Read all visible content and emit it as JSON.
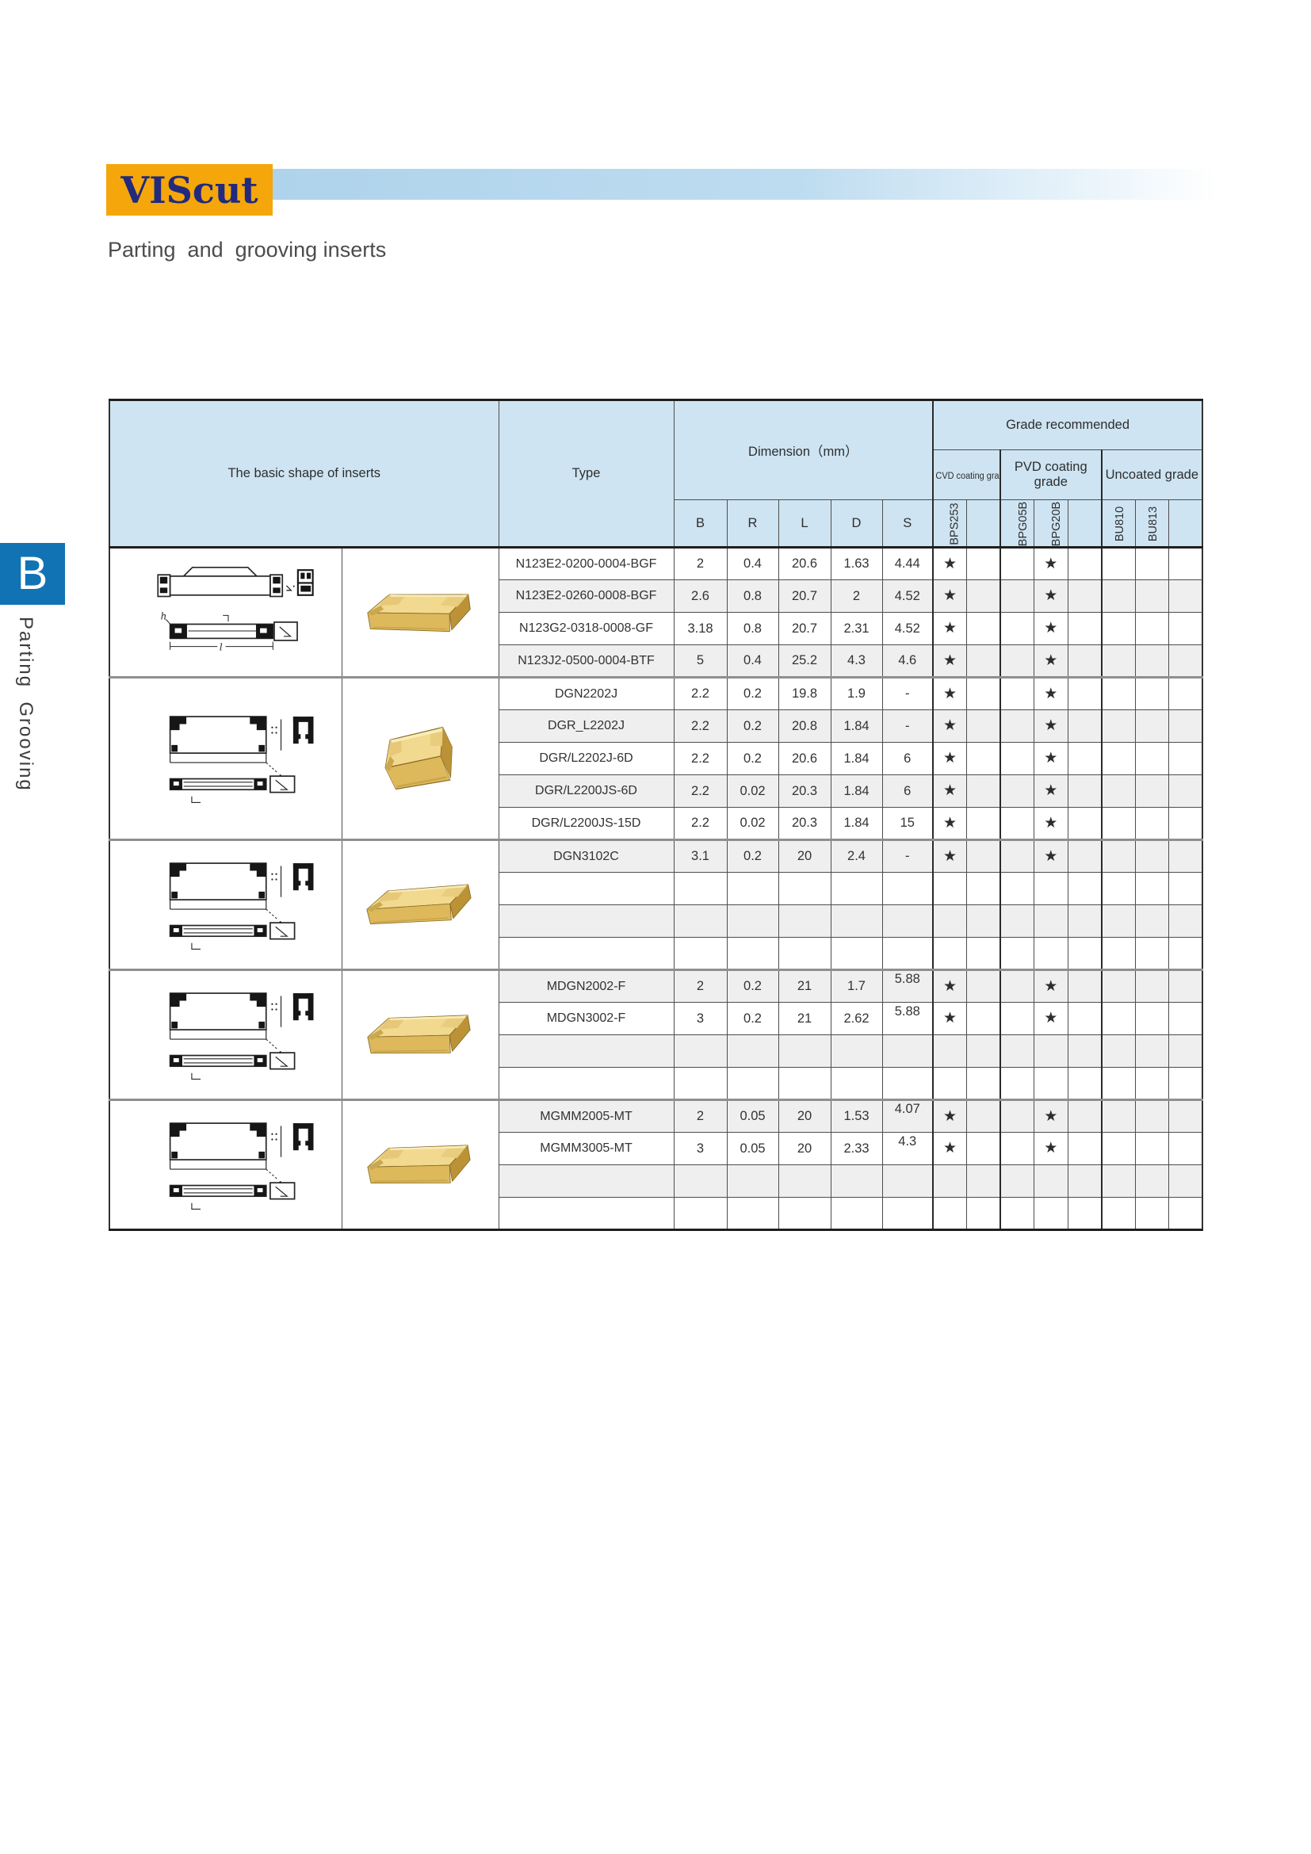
{
  "page": {
    "logo_text": "VIScut",
    "subtitle": "Parting  and  grooving inserts",
    "side_tab": {
      "letter": "B",
      "label": "Parting  Grooving"
    },
    "colors": {
      "logo_bg": "#f5a60a",
      "logo_text": "#212a7d",
      "accent_bar": "#aed3eb",
      "tab_blue": "#1173b4",
      "header_blue": "#cee4f2",
      "stripe_gray": "#efefef",
      "insert_gold": "#ddb95c"
    }
  },
  "table": {
    "headers": {
      "basic_shape": "The basic shape of inserts",
      "type": "Type",
      "dimension": "Dimension（mm）",
      "dim_cols": [
        "B",
        "R",
        "L",
        "D",
        "S"
      ],
      "grade_recommended": "Grade recommended",
      "grade_groups": [
        {
          "label": "CVD coating grade",
          "cols": [
            "BPS253",
            ""
          ]
        },
        {
          "label": "PVD coating grade",
          "cols": [
            "BPG05B",
            "BPG20B",
            ""
          ]
        },
        {
          "label": "Uncoated grade",
          "cols": [
            "BU810",
            "BU813",
            ""
          ]
        }
      ]
    },
    "star": "★",
    "blocks": [
      {
        "figure": "N123",
        "rows": [
          {
            "shaded": false,
            "type": "N123E2-0200-0004-BGF",
            "b": "2",
            "r": "0.4",
            "l": "20.6",
            "d": "1.63",
            "s": "4.44",
            "grades": [
              "★",
              "",
              "",
              "★",
              "",
              "",
              "",
              ""
            ]
          },
          {
            "shaded": true,
            "type": "N123E2-0260-0008-BGF",
            "b": "2.6",
            "r": "0.8",
            "l": "20.7",
            "d": "2",
            "s": "4.52",
            "grades": [
              "★",
              "",
              "",
              "★",
              "",
              "",
              "",
              ""
            ]
          },
          {
            "shaded": false,
            "type": "N123G2-0318-0008-GF",
            "b": "3.18",
            "r": "0.8",
            "l": "20.7",
            "d": "2.31",
            "s": "4.52",
            "grades": [
              "★",
              "",
              "",
              "★",
              "",
              "",
              "",
              ""
            ]
          },
          {
            "shaded": true,
            "type": "N123J2-0500-0004-BTF",
            "b": "5",
            "r": "0.4",
            "l": "25.2",
            "d": "4.3",
            "s": "4.6",
            "grades": [
              "★",
              "",
              "",
              "★",
              "",
              "",
              "",
              ""
            ]
          }
        ]
      },
      {
        "figure": "DGN",
        "rows": [
          {
            "shaded": false,
            "type": "DGN2202J",
            "b": "2.2",
            "r": "0.2",
            "l": "19.8",
            "d": "1.9",
            "s": "-",
            "grades": [
              "★",
              "",
              "",
              "★",
              "",
              "",
              "",
              ""
            ]
          },
          {
            "shaded": true,
            "type": "DGR_L2202J",
            "b": "2.2",
            "r": "0.2",
            "l": "20.8",
            "d": "1.84",
            "s": "-",
            "grades": [
              "★",
              "",
              "",
              "★",
              "",
              "",
              "",
              ""
            ]
          },
          {
            "shaded": false,
            "type": "DGR/L2202J-6D",
            "b": "2.2",
            "r": "0.2",
            "l": "20.6",
            "d": "1.84",
            "s": "6",
            "grades": [
              "★",
              "",
              "",
              "★",
              "",
              "",
              "",
              ""
            ]
          },
          {
            "shaded": true,
            "type": "DGR/L2200JS-6D",
            "b": "2.2",
            "r": "0.02",
            "l": "20.3",
            "d": "1.84",
            "s": "6",
            "grades": [
              "★",
              "",
              "",
              "★",
              "",
              "",
              "",
              ""
            ]
          },
          {
            "shaded": false,
            "type": "DGR/L2200JS-15D",
            "b": "2.2",
            "r": "0.02",
            "l": "20.3",
            "d": "1.84",
            "s": "15",
            "grades": [
              "★",
              "",
              "",
              "★",
              "",
              "",
              "",
              ""
            ]
          }
        ]
      },
      {
        "figure": "DGN",
        "rows": [
          {
            "shaded": true,
            "type": "DGN3102C",
            "b": "3.1",
            "r": "0.2",
            "l": "20",
            "d": "2.4",
            "s": "-",
            "grades": [
              "★",
              "",
              "",
              "★",
              "",
              "",
              "",
              ""
            ]
          },
          {
            "shaded": false,
            "type": "",
            "b": "",
            "r": "",
            "l": "",
            "d": "",
            "s": "",
            "grades": [
              "",
              "",
              "",
              "",
              "",
              "",
              "",
              ""
            ]
          },
          {
            "shaded": true,
            "type": "",
            "b": "",
            "r": "",
            "l": "",
            "d": "",
            "s": "",
            "grades": [
              "",
              "",
              "",
              "",
              "",
              "",
              "",
              ""
            ]
          },
          {
            "shaded": false,
            "type": "",
            "b": "",
            "r": "",
            "l": "",
            "d": "",
            "s": "",
            "grades": [
              "",
              "",
              "",
              "",
              "",
              "",
              "",
              ""
            ]
          }
        ]
      },
      {
        "figure": "DGN",
        "rows": [
          {
            "shaded": true,
            "type": "MDGN2002-F",
            "b": "2",
            "r": "0.2",
            "l": "21",
            "d": "1.7",
            "s": "5.88",
            "grades": [
              "★",
              "",
              "",
              "★",
              "",
              "",
              "",
              ""
            ]
          },
          {
            "shaded": false,
            "type": "MDGN3002-F",
            "b": "3",
            "r": "0.2",
            "l": "21",
            "d": "2.62",
            "s": "5.88",
            "grades": [
              "★",
              "",
              "",
              "★",
              "",
              "",
              "",
              ""
            ]
          },
          {
            "shaded": true,
            "type": "",
            "b": "",
            "r": "",
            "l": "",
            "d": "",
            "s": "",
            "grades": [
              "",
              "",
              "",
              "",
              "",
              "",
              "",
              ""
            ]
          },
          {
            "shaded": false,
            "type": "",
            "b": "",
            "r": "",
            "l": "",
            "d": "",
            "s": "",
            "grades": [
              "",
              "",
              "",
              "",
              "",
              "",
              "",
              ""
            ]
          }
        ]
      },
      {
        "figure": "DGN",
        "rows": [
          {
            "shaded": true,
            "type": "MGMM2005-MT",
            "b": "2",
            "r": "0.05",
            "l": "20",
            "d": "1.53",
            "s": "4.07",
            "grades": [
              "★",
              "",
              "",
              "★",
              "",
              "",
              "",
              ""
            ]
          },
          {
            "shaded": false,
            "type": "MGMM3005-MT",
            "b": "3",
            "r": "0.05",
            "l": "20",
            "d": "2.33",
            "s": "4.3",
            "grades": [
              "★",
              "",
              "",
              "★",
              "",
              "",
              "",
              ""
            ]
          },
          {
            "shaded": true,
            "type": "",
            "b": "",
            "r": "",
            "l": "",
            "d": "",
            "s": "",
            "grades": [
              "",
              "",
              "",
              "",
              "",
              "",
              "",
              ""
            ]
          },
          {
            "shaded": false,
            "type": "",
            "b": "",
            "r": "",
            "l": "",
            "d": "",
            "s": "",
            "grades": [
              "",
              "",
              "",
              "",
              "",
              "",
              "",
              ""
            ]
          }
        ]
      }
    ]
  }
}
